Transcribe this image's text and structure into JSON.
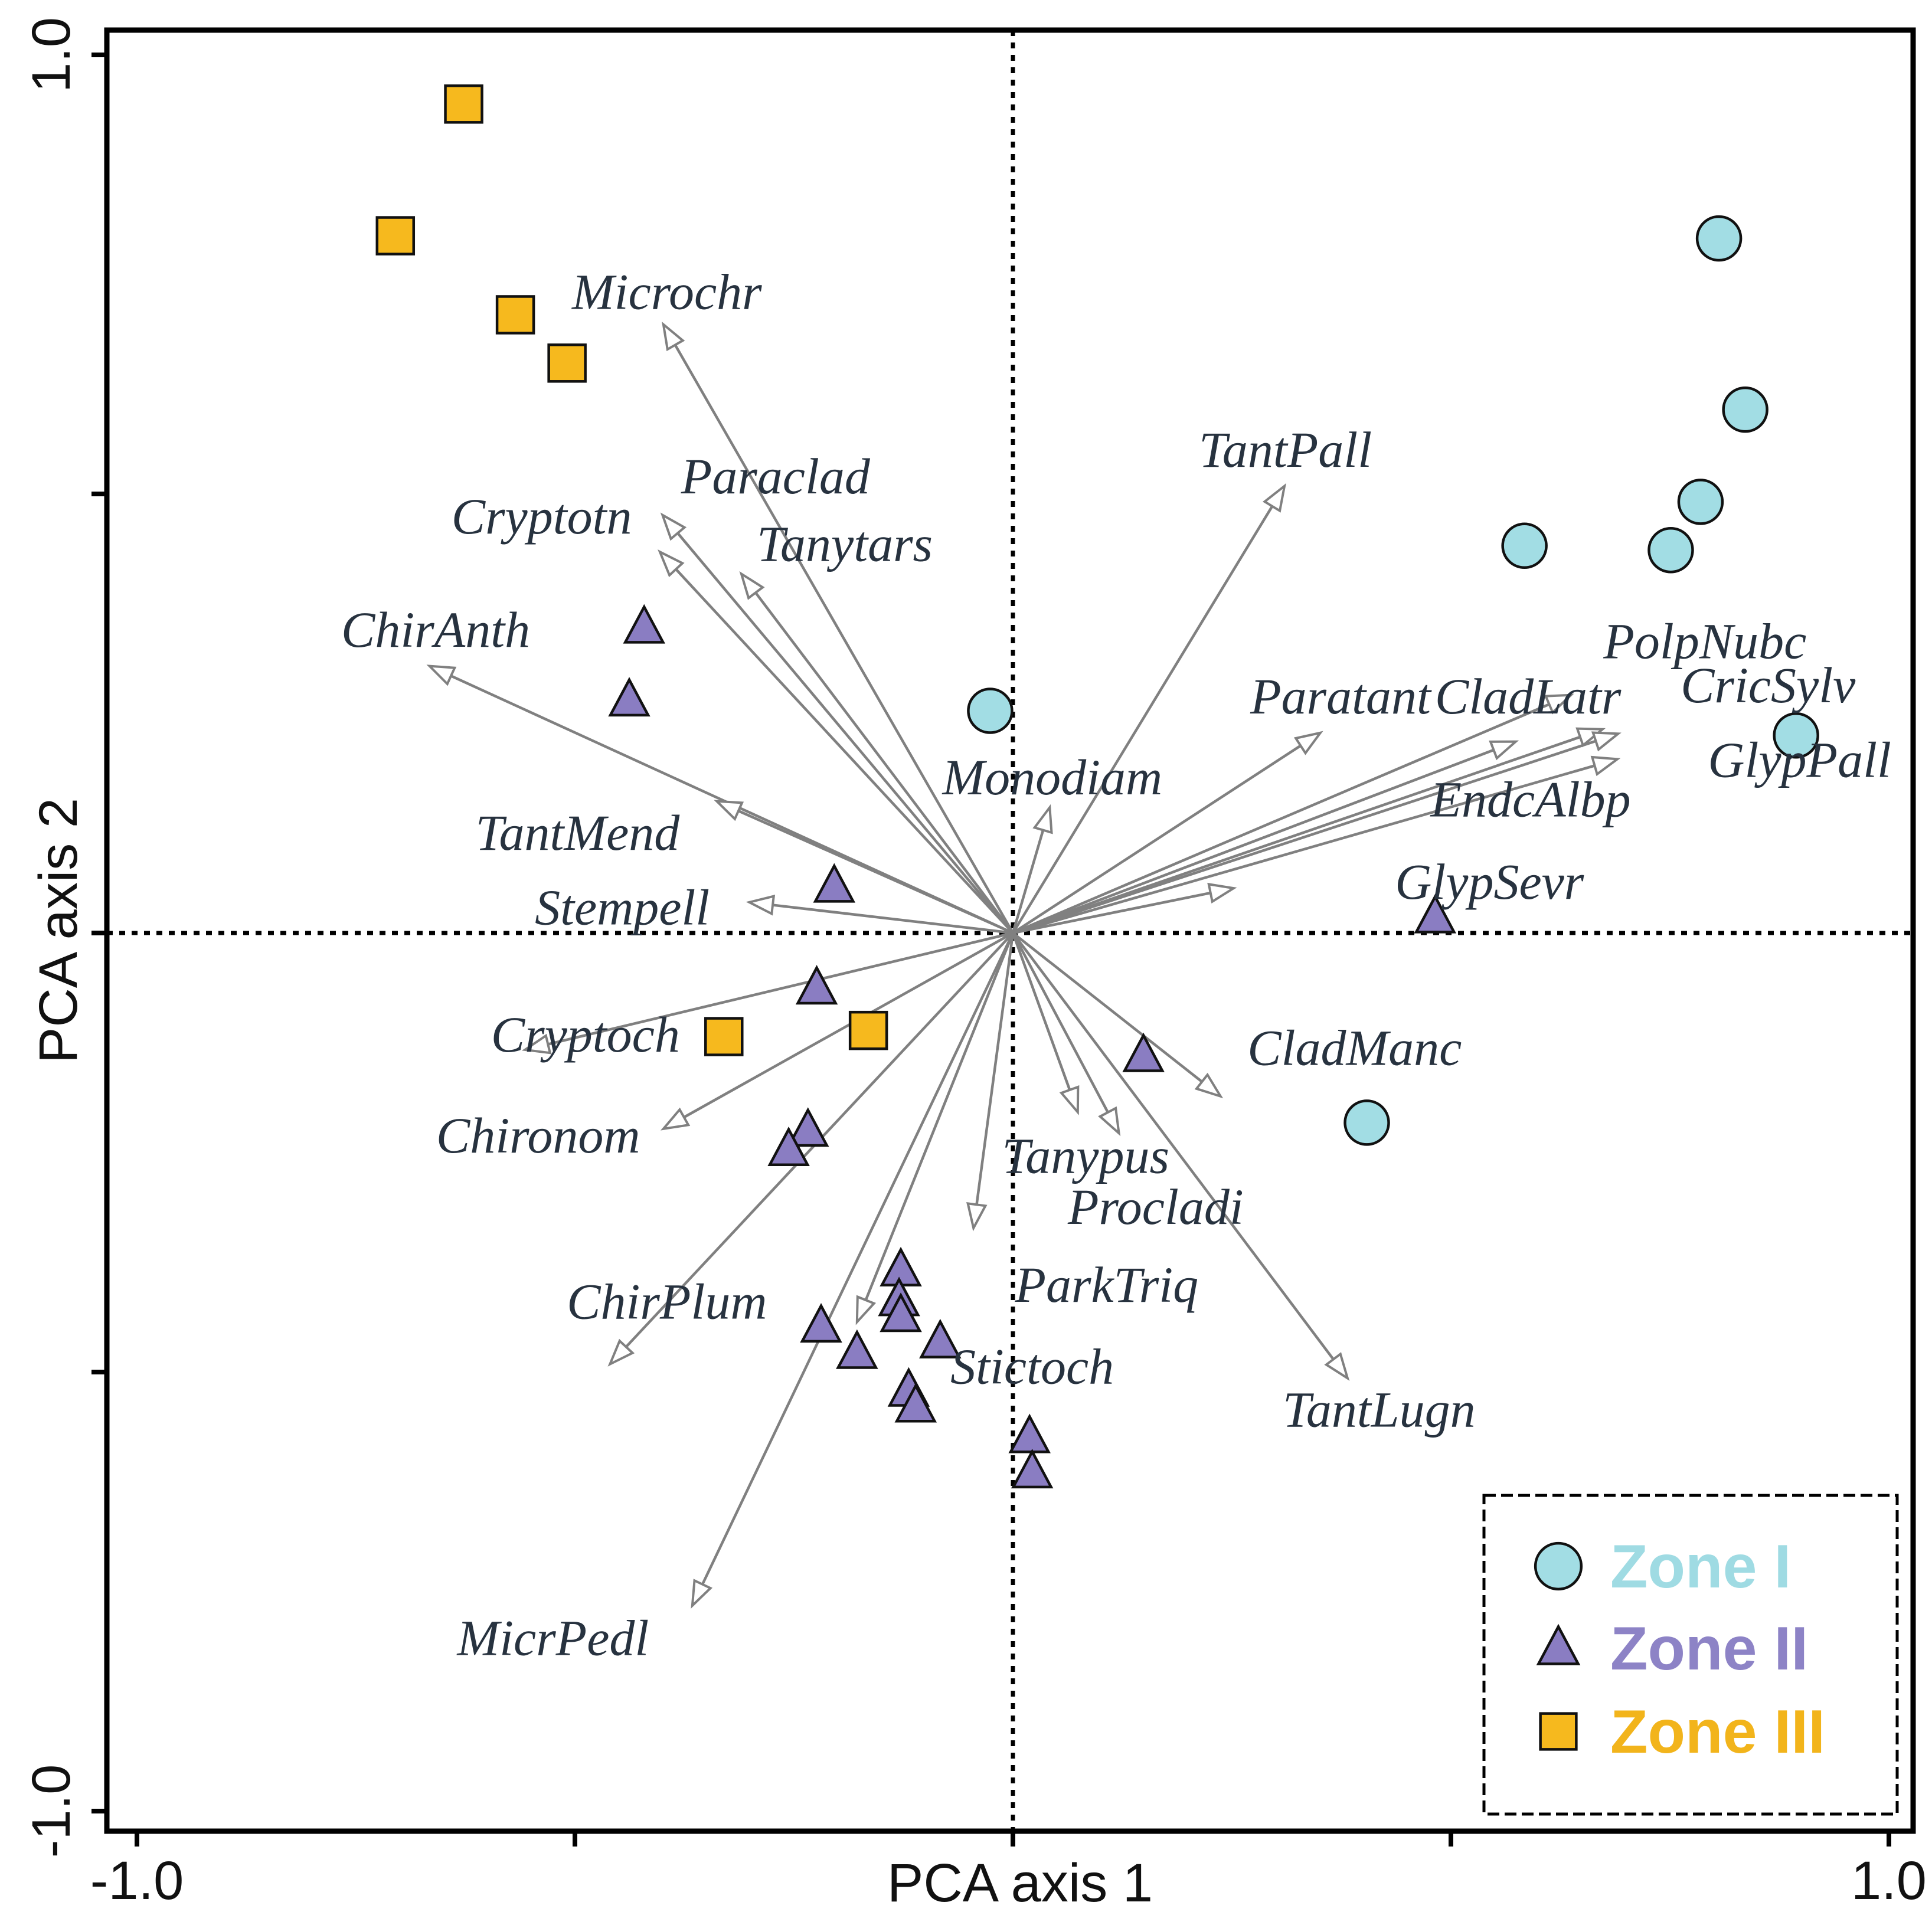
{
  "chart_data": {
    "type": "scatter",
    "subtype": "pca-biplot",
    "xlabel": "PCA axis 1",
    "ylabel": "PCA axis 2",
    "xlim": [
      -1.0,
      1.0
    ],
    "ylim": [
      -1.0,
      1.0
    ],
    "x_tick_labels": [
      "-1.0",
      "1.0"
    ],
    "y_tick_labels": [
      "-1.0",
      "1.0"
    ],
    "minor_ticks": [
      -0.5,
      0.5
    ],
    "zero_lines": "dotted",
    "legend_position": "bottom-right",
    "colors": {
      "zone1": "#a2dde4",
      "zone2": "#8a7dc2",
      "zone3": "#f6b91e",
      "zone1_text": "#9fdbe3",
      "zone2_text": "#8d83c6",
      "zone3_text": "#f2b41b",
      "arrow": "#808080",
      "species_text": "#27323f"
    },
    "series": [
      {
        "name": "Zone I",
        "marker": "circle",
        "points": [
          [
            0.806,
            0.791
          ],
          [
            0.584,
            0.441
          ],
          [
            0.836,
            0.596
          ],
          [
            0.785,
            0.491
          ],
          [
            0.751,
            0.436
          ],
          [
            0.894,
            0.225
          ],
          [
            -0.026,
            0.253
          ],
          [
            0.404,
            -0.216
          ]
        ]
      },
      {
        "name": "Zone II",
        "marker": "triangle",
        "points": [
          [
            -0.421,
            0.348
          ],
          [
            -0.438,
            0.265
          ],
          [
            -0.204,
            0.053
          ],
          [
            0.482,
            0.018
          ],
          [
            -0.224,
            -0.063
          ],
          [
            0.149,
            -0.14
          ],
          [
            -0.234,
            -0.225
          ],
          [
            -0.256,
            -0.247
          ],
          [
            -0.128,
            -0.384
          ],
          [
            -0.13,
            -0.418
          ],
          [
            -0.128,
            -0.436
          ],
          [
            -0.219,
            -0.448
          ],
          [
            -0.178,
            -0.478
          ],
          [
            -0.083,
            -0.466
          ],
          [
            -0.119,
            -0.521
          ],
          [
            -0.111,
            -0.539
          ],
          [
            0.019,
            -0.574
          ],
          [
            0.022,
            -0.614
          ]
        ]
      },
      {
        "name": "Zone III",
        "marker": "square",
        "points": [
          [
            -0.627,
            0.944
          ],
          [
            -0.705,
            0.794
          ],
          [
            -0.568,
            0.704
          ],
          [
            -0.509,
            0.649
          ],
          [
            -0.33,
            -0.118
          ],
          [
            -0.165,
            -0.111
          ]
        ]
      }
    ],
    "vectors": [
      {
        "name": "Microchr",
        "x": -0.399,
        "y": 0.693,
        "label_x": -0.395,
        "label_y": 0.731
      },
      {
        "name": "Paraclad",
        "x": -0.4,
        "y": 0.476,
        "label_x": -0.271,
        "label_y": 0.521
      },
      {
        "name": "Cryptotn",
        "x": -0.403,
        "y": 0.434,
        "label_x": -0.538,
        "label_y": 0.475
      },
      {
        "name": "Tanytars",
        "x": -0.31,
        "y": 0.409,
        "label_x": -0.192,
        "label_y": 0.444
      },
      {
        "name": "ChirAnth",
        "x": -0.666,
        "y": 0.304,
        "label_x": -0.659,
        "label_y": 0.346
      },
      {
        "name": "TantMend",
        "x": -0.338,
        "y": 0.15,
        "label_x": -0.497,
        "label_y": 0.115
      },
      {
        "name": "Stempell",
        "x": -0.301,
        "y": 0.035,
        "label_x": -0.446,
        "label_y": 0.03
      },
      {
        "name": "Monodiam",
        "x": 0.042,
        "y": 0.143,
        "label_x": 0.045,
        "label_y": 0.178
      },
      {
        "name": "TantPall",
        "x": 0.31,
        "y": 0.509,
        "label_x": 0.311,
        "label_y": 0.551
      },
      {
        "name": "Paratant",
        "x": 0.351,
        "y": 0.228,
        "label_x": 0.374,
        "label_y": 0.27
      },
      {
        "name": "CladLatr",
        "x": 0.637,
        "y": 0.271,
        "label_x": 0.588,
        "label_y": 0.27
      },
      {
        "name": "PolpNubc",
        "x": 0.673,
        "y": 0.232,
        "label_x": 0.79,
        "label_y": 0.333
      },
      {
        "name": "CricSylv",
        "x": 0.691,
        "y": 0.227,
        "label_x": 0.862,
        "label_y": 0.283
      },
      {
        "name": "EndcAlbp",
        "x": 0.574,
        "y": 0.218,
        "label_x": 0.591,
        "label_y": 0.153
      },
      {
        "name": "GlypPall",
        "x": 0.69,
        "y": 0.198,
        "label_x": 0.898,
        "label_y": 0.198
      },
      {
        "name": "GlypSevr",
        "x": 0.252,
        "y": 0.051,
        "label_x": 0.544,
        "label_y": 0.059
      },
      {
        "name": "Cryptoch",
        "x": -0.557,
        "y": -0.133,
        "label_x": -0.488,
        "label_y": -0.115
      },
      {
        "name": "Chironom",
        "x": -0.399,
        "y": -0.223,
        "label_x": -0.542,
        "label_y": -0.23
      },
      {
        "name": "ChirPlum",
        "x": -0.46,
        "y": -0.491,
        "label_x": -0.395,
        "label_y": -0.419
      },
      {
        "name": "CladManc",
        "x": 0.237,
        "y": -0.186,
        "label_x": 0.39,
        "label_y": -0.13
      },
      {
        "name": "Tanypus",
        "x": 0.074,
        "y": -0.204,
        "label_x": 0.083,
        "label_y": -0.253
      },
      {
        "name": "Procladi",
        "x": 0.121,
        "y": -0.228,
        "label_x": 0.163,
        "label_y": -0.311
      },
      {
        "name": "ParkTriq",
        "x": -0.045,
        "y": -0.336,
        "label_x": 0.107,
        "label_y": -0.4
      },
      {
        "name": "Stictoch",
        "x": -0.178,
        "y": -0.443,
        "label_x": 0.022,
        "label_y": -0.493
      },
      {
        "name": "TantLugn",
        "x": 0.382,
        "y": -0.507,
        "label_x": 0.418,
        "label_y": -0.542
      },
      {
        "name": "MicrPedl",
        "x": -0.366,
        "y": -0.766,
        "label_x": -0.525,
        "label_y": -0.802
      }
    ]
  }
}
